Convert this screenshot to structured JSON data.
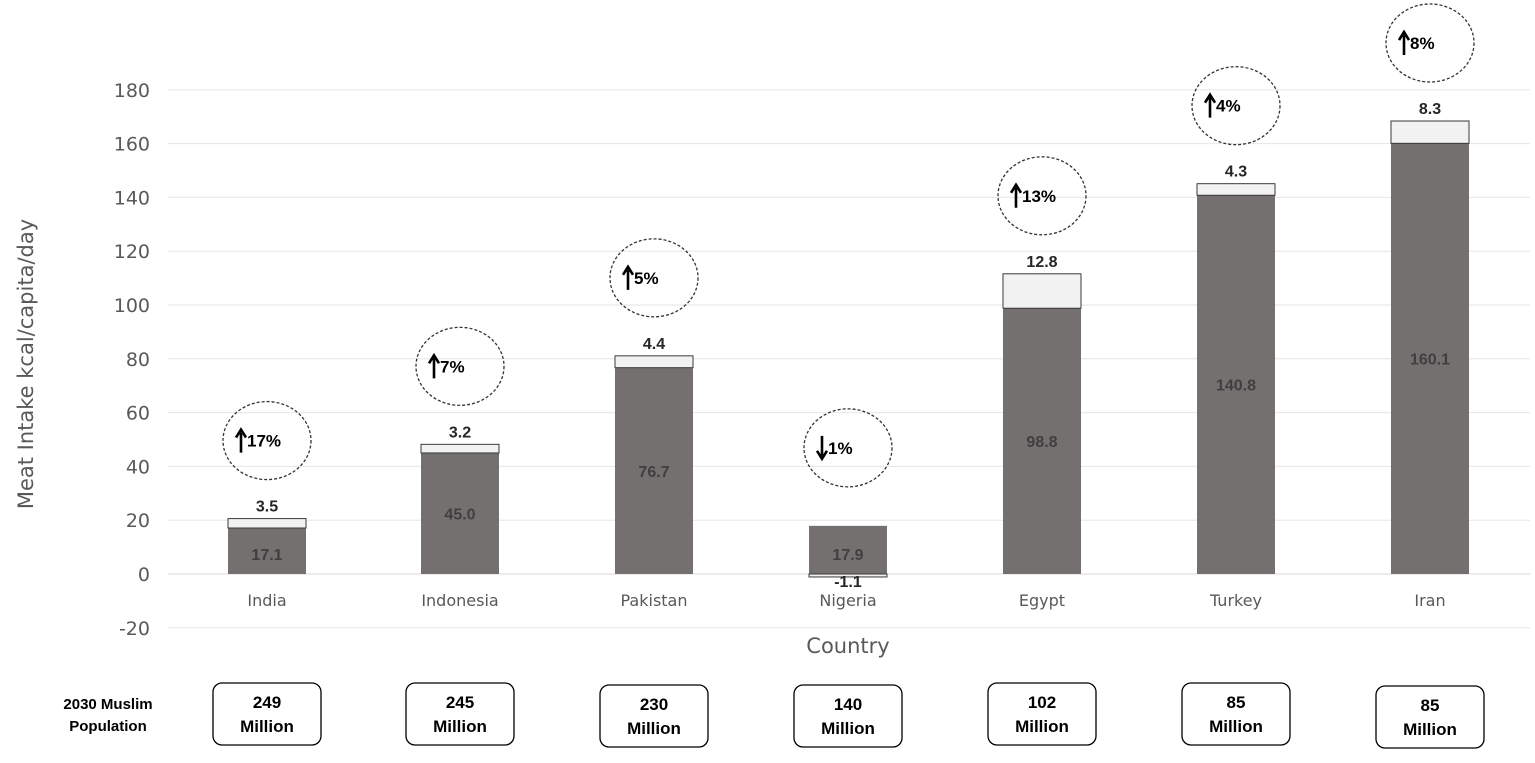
{
  "chart_data": {
    "type": "bar",
    "stacked": true,
    "ylabel": "Meat Intake kcal/capita/day",
    "xlabel": "Country",
    "ylim": [
      -20,
      180
    ],
    "yticks": [
      -20,
      0,
      20,
      40,
      60,
      80,
      100,
      120,
      140,
      160,
      180
    ],
    "grid": true,
    "categories": [
      "India",
      "Indonesia",
      "Pakistan",
      "Nigeria",
      "Egypt",
      "Turkey",
      "Iran"
    ],
    "series": [
      {
        "values": [
          17.1,
          45.0,
          76.7,
          17.9,
          98.8,
          140.8,
          160.1
        ],
        "color": "#757070"
      },
      {
        "values": [
          3.5,
          3.2,
          4.4,
          -1.1,
          12.8,
          4.3,
          8.3
        ],
        "color": "#f2f2f2"
      }
    ],
    "change_labels": [
      {
        "direction": "up",
        "text": "17%"
      },
      {
        "direction": "up",
        "text": "7%"
      },
      {
        "direction": "up",
        "text": "5%"
      },
      {
        "direction": "down",
        "text": "1%"
      },
      {
        "direction": "up",
        "text": "13%"
      },
      {
        "direction": "up",
        "text": "4%"
      },
      {
        "direction": "up",
        "text": "8%"
      }
    ],
    "population": {
      "label_lines": [
        "2030 Muslim",
        "Population"
      ],
      "values": [
        "249",
        "245",
        "230",
        "140",
        "102",
        "85",
        "85"
      ],
      "unit": "Million"
    }
  }
}
